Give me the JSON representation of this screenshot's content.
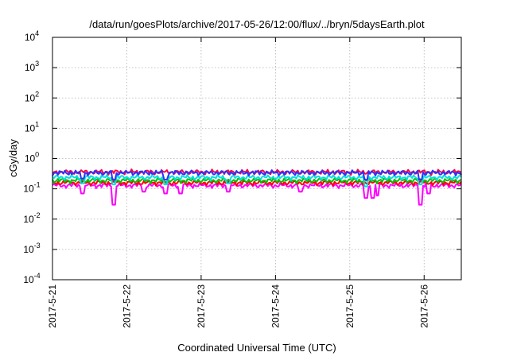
{
  "chart_data": {
    "type": "line",
    "title": "/data/run/goesPlots/archive/2017-05-26/12:00/flux/../bryn/5daysEarth.plot",
    "xlabel": "Coordinated Universal Time (UTC)",
    "ylabel": "cGy/day",
    "yscale": "log",
    "ylim": [
      0.0001,
      10000
    ],
    "y_ticks": [
      {
        "base": "10",
        "exp": "-4"
      },
      {
        "base": "10",
        "exp": "-3"
      },
      {
        "base": "10",
        "exp": "-2"
      },
      {
        "base": "10",
        "exp": "-1"
      },
      {
        "base": "10",
        "exp": "0"
      },
      {
        "base": "10",
        "exp": "1"
      },
      {
        "base": "10",
        "exp": "2"
      },
      {
        "base": "10",
        "exp": "3"
      },
      {
        "base": "10",
        "exp": "4"
      }
    ],
    "xlim": [
      "2017-05-21",
      "2017-05-26T12:00"
    ],
    "x_ticks": [
      "2017-5-21",
      "2017-5-22",
      "2017-5-23",
      "2017-5-24",
      "2017-5-25",
      "2017-5-26"
    ],
    "grid": true,
    "series": [
      {
        "color": "#ff00ff",
        "baseline": 0.13,
        "dips": [
          [
            "2017-05-21T09:50",
            0.07
          ],
          [
            "2017-05-21T19:40",
            0.03
          ],
          [
            "2017-05-22T05:30",
            0.08
          ],
          [
            "2017-05-22T12:40",
            0.07
          ],
          [
            "2017-05-22T17:20",
            0.07
          ],
          [
            "2017-05-23T08:40",
            0.08
          ],
          [
            "2017-05-24T08:00",
            0.08
          ],
          [
            "2017-05-25T05:20",
            0.05
          ],
          [
            "2017-05-25T07:30",
            0.05
          ],
          [
            "2017-05-25T09:00",
            0.06
          ],
          [
            "2017-05-25T22:50",
            0.03
          ],
          [
            "2017-05-26T01:20",
            0.07
          ]
        ]
      },
      {
        "color": "#ff0000",
        "baseline": 0.16,
        "dips": []
      },
      {
        "color": "#00c000",
        "baseline": 0.19,
        "dips": []
      },
      {
        "color": "#00e0e0",
        "baseline": 0.24,
        "dips": [
          [
            "2017-05-21T09:50",
            0.15
          ],
          [
            "2017-05-21T19:40",
            0.14
          ],
          [
            "2017-05-22T12:40",
            0.14
          ],
          [
            "2017-05-23T08:40",
            0.15
          ],
          [
            "2017-05-25T05:20",
            0.12
          ],
          [
            "2017-05-25T22:50",
            0.14
          ]
        ]
      },
      {
        "color": "#ff0040",
        "baseline": 0.36,
        "dips": []
      },
      {
        "color": "#3030ff",
        "baseline": 0.34,
        "dips": [
          [
            "2017-05-21T09:50",
            0.22
          ],
          [
            "2017-05-21T19:40",
            0.2
          ],
          [
            "2017-05-22T12:40",
            0.2
          ],
          [
            "2017-05-25T05:20",
            0.2
          ],
          [
            "2017-05-25T22:50",
            0.2
          ]
        ]
      }
    ]
  }
}
